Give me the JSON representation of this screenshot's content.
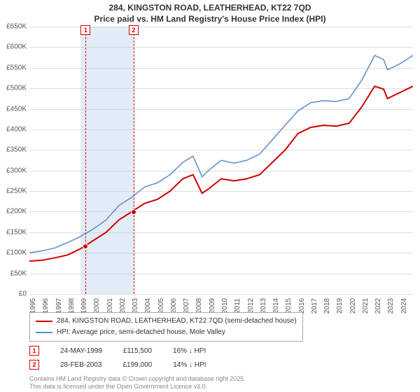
{
  "title_line1": "284, KINGSTON ROAD, LEATHERHEAD, KT22 7QD",
  "title_line2": "Price paid vs. HM Land Registry's House Price Index (HPI)",
  "chart": {
    "type": "line",
    "background_color": "#ffffff",
    "grid_color": "#dddddd",
    "ylim": [
      0,
      650000
    ],
    "ytick_step": 50000,
    "yticks": [
      "£0",
      "£50K",
      "£100K",
      "£150K",
      "£200K",
      "£250K",
      "£300K",
      "£350K",
      "£400K",
      "£450K",
      "£500K",
      "£550K",
      "£600K",
      "£650K"
    ],
    "x_years": [
      1995,
      1996,
      1997,
      1998,
      1999,
      2000,
      2001,
      2002,
      2003,
      2004,
      2005,
      2006,
      2007,
      2008,
      2009,
      2010,
      2011,
      2012,
      2013,
      2014,
      2015,
      2016,
      2017,
      2018,
      2019,
      2020,
      2021,
      2022,
      2023,
      2024
    ],
    "xlim": [
      1995,
      2025
    ],
    "series": [
      {
        "label": "284, KINGSTON ROAD, LEATHERHEAD, KT22 7QD (semi-detached house)",
        "color": "#d00000",
        "line_width": 2,
        "points": [
          [
            1995,
            80000
          ],
          [
            1996,
            82000
          ],
          [
            1997,
            88000
          ],
          [
            1998,
            95000
          ],
          [
            1999,
            110000
          ],
          [
            2000,
            130000
          ],
          [
            2001,
            150000
          ],
          [
            2002,
            180000
          ],
          [
            2003,
            200000
          ],
          [
            2004,
            220000
          ],
          [
            2005,
            230000
          ],
          [
            2006,
            250000
          ],
          [
            2007,
            280000
          ],
          [
            2007.8,
            290000
          ],
          [
            2008.5,
            245000
          ],
          [
            2009,
            255000
          ],
          [
            2010,
            280000
          ],
          [
            2011,
            275000
          ],
          [
            2012,
            280000
          ],
          [
            2013,
            290000
          ],
          [
            2014,
            320000
          ],
          [
            2015,
            350000
          ],
          [
            2016,
            390000
          ],
          [
            2017,
            405000
          ],
          [
            2018,
            410000
          ],
          [
            2019,
            408000
          ],
          [
            2020,
            415000
          ],
          [
            2021,
            455000
          ],
          [
            2022,
            505000
          ],
          [
            2022.7,
            498000
          ],
          [
            2023,
            475000
          ],
          [
            2024,
            490000
          ],
          [
            2025,
            505000
          ]
        ]
      },
      {
        "label": "HPI: Average price, semi-detached house, Mole Valley",
        "color": "#5a8ccc",
        "line_width": 1.5,
        "points": [
          [
            1995,
            100000
          ],
          [
            1996,
            105000
          ],
          [
            1997,
            112000
          ],
          [
            1998,
            125000
          ],
          [
            1999,
            140000
          ],
          [
            2000,
            158000
          ],
          [
            2001,
            180000
          ],
          [
            2002,
            215000
          ],
          [
            2003,
            235000
          ],
          [
            2004,
            260000
          ],
          [
            2005,
            270000
          ],
          [
            2006,
            290000
          ],
          [
            2007,
            320000
          ],
          [
            2007.8,
            335000
          ],
          [
            2008.5,
            285000
          ],
          [
            2009,
            300000
          ],
          [
            2010,
            325000
          ],
          [
            2011,
            318000
          ],
          [
            2012,
            325000
          ],
          [
            2013,
            340000
          ],
          [
            2014,
            375000
          ],
          [
            2015,
            410000
          ],
          [
            2016,
            445000
          ],
          [
            2017,
            465000
          ],
          [
            2018,
            470000
          ],
          [
            2019,
            468000
          ],
          [
            2020,
            475000
          ],
          [
            2021,
            520000
          ],
          [
            2022,
            580000
          ],
          [
            2022.7,
            570000
          ],
          [
            2023,
            545000
          ],
          [
            2024,
            560000
          ],
          [
            2025,
            580000
          ]
        ]
      }
    ],
    "shade_band": {
      "x_start": 1999.0,
      "x_end": 2003.2,
      "color": "rgba(173,200,230,0.35)"
    },
    "markers": [
      {
        "num": "1",
        "x": 1999.4,
        "y": 115500,
        "color": "#d00000"
      },
      {
        "num": "2",
        "x": 2003.16,
        "y": 199000,
        "color": "#d00000"
      }
    ]
  },
  "legend": {
    "items": [
      {
        "color": "#d00000",
        "label": "284, KINGSTON ROAD, LEATHERHEAD, KT22 7QD (semi-detached house)"
      },
      {
        "color": "#5a8ccc",
        "label": "HPI: Average price, semi-detached house, Mole Valley"
      }
    ]
  },
  "transactions": [
    {
      "num": "1",
      "date": "24-MAY-1999",
      "price": "£115,500",
      "delta": "16% ↓ HPI"
    },
    {
      "num": "2",
      "date": "28-FEB-2003",
      "price": "£199,000",
      "delta": "14% ↓ HPI"
    }
  ],
  "footer_line1": "Contains HM Land Registry data © Crown copyright and database right 2025.",
  "footer_line2": "This data is licensed under the Open Government Licence v3.0."
}
